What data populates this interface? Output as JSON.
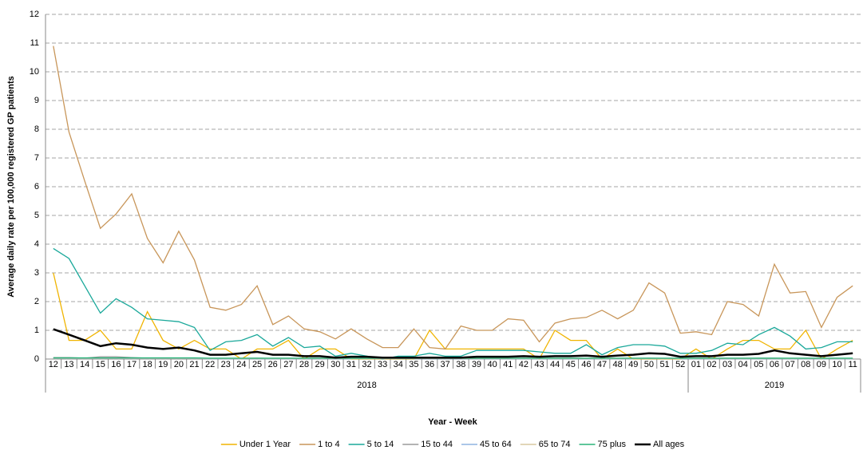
{
  "chart_data": {
    "type": "line",
    "y_label": "Average daily rate per 100,000 registered GP patients",
    "x_label": "Year - Week",
    "groups": [
      {
        "label": "2018",
        "categories": [
          "12",
          "13",
          "14",
          "15",
          "16",
          "17",
          "18",
          "19",
          "20",
          "21",
          "22",
          "23",
          "24",
          "25",
          "26",
          "27",
          "28",
          "29",
          "30",
          "31",
          "32",
          "33",
          "34",
          "35",
          "36",
          "37",
          "38",
          "39",
          "40",
          "41",
          "42",
          "43",
          "44",
          "45",
          "46",
          "47",
          "48",
          "49",
          "50",
          "51",
          "52"
        ]
      },
      {
        "label": "2019",
        "categories": [
          "01",
          "02",
          "03",
          "04",
          "05",
          "06",
          "07",
          "08",
          "09",
          "10",
          "11"
        ]
      }
    ],
    "ylim": [
      0,
      12
    ],
    "yticks": [
      0,
      1,
      2,
      3,
      4,
      5,
      6,
      7,
      8,
      9,
      10,
      11,
      12
    ],
    "grid": true,
    "legend": "bottom",
    "series": [
      {
        "name": "Under 1 Year",
        "color": "#f0b400",
        "values": [
          3.0,
          0.65,
          0.65,
          1.0,
          0.35,
          0.35,
          1.65,
          0.65,
          0.35,
          0.65,
          0.35,
          0.35,
          0.0,
          0.35,
          0.35,
          0.65,
          0.0,
          0.35,
          0.35,
          0.0,
          0.0,
          0.0,
          0.0,
          0.0,
          1.0,
          0.35,
          0.35,
          0.35,
          0.35,
          0.35,
          0.35,
          0.0,
          1.0,
          0.65,
          0.65,
          0.0,
          0.35,
          0.0,
          0.0,
          0.0,
          0.0,
          0.35,
          0.0,
          0.35,
          0.65,
          0.65,
          0.35,
          0.35,
          1.0,
          0.0,
          0.35,
          0.65
        ]
      },
      {
        "name": "1 to 4",
        "color": "#c8965a",
        "values": [
          10.9,
          7.9,
          6.2,
          4.55,
          5.05,
          5.75,
          4.2,
          3.35,
          4.45,
          3.45,
          1.8,
          1.7,
          1.9,
          2.55,
          1.2,
          1.5,
          1.05,
          0.95,
          0.7,
          1.05,
          0.7,
          0.4,
          0.4,
          1.05,
          0.4,
          0.35,
          1.15,
          1.0,
          1.0,
          1.4,
          1.35,
          0.6,
          1.25,
          1.4,
          1.45,
          1.7,
          1.4,
          1.7,
          2.65,
          2.3,
          0.9,
          0.95,
          0.85,
          2.0,
          1.9,
          1.5,
          3.3,
          2.3,
          2.35,
          1.1,
          2.15,
          2.55
        ]
      },
      {
        "name": "5 to 14",
        "color": "#1aa89a",
        "values": [
          3.85,
          3.5,
          2.55,
          1.6,
          2.1,
          1.8,
          1.4,
          1.35,
          1.3,
          1.1,
          0.3,
          0.6,
          0.65,
          0.85,
          0.45,
          0.75,
          0.4,
          0.45,
          0.1,
          0.2,
          0.1,
          0.0,
          0.1,
          0.1,
          0.2,
          0.1,
          0.1,
          0.3,
          0.3,
          0.3,
          0.3,
          0.25,
          0.2,
          0.2,
          0.5,
          0.15,
          0.4,
          0.5,
          0.5,
          0.45,
          0.2,
          0.2,
          0.3,
          0.55,
          0.5,
          0.85,
          1.1,
          0.8,
          0.35,
          0.4,
          0.6,
          0.6
        ]
      },
      {
        "name": "15 to 44",
        "color": "#9a9a9a",
        "values": [
          0.05,
          0.05,
          0.03,
          0.08,
          0.08,
          0.05,
          0.03,
          0.03,
          0.03,
          0.03,
          0.02,
          0.02,
          0.02,
          0.03,
          0.02,
          0.02,
          0.02,
          0.02,
          0.02,
          0.02,
          0.02,
          0.02,
          0.02,
          0.02,
          0.02,
          0.02,
          0.02,
          0.02,
          0.02,
          0.02,
          0.02,
          0.02,
          0.02,
          0.02,
          0.02,
          0.02,
          0.02,
          0.02,
          0.03,
          0.02,
          0.02,
          0.02,
          0.02,
          0.02,
          0.02,
          0.03,
          0.03,
          0.02,
          0.02,
          0.02,
          0.02,
          0.02
        ]
      },
      {
        "name": "45 to 64",
        "color": "#8fb4e0",
        "values": [
          0.02,
          0.02,
          0.02,
          0.02,
          0.02,
          0.02,
          0.02,
          0.02,
          0.02,
          0.02,
          0.01,
          0.01,
          0.01,
          0.01,
          0.01,
          0.01,
          0.01,
          0.01,
          0.01,
          0.01,
          0.01,
          0.01,
          0.01,
          0.01,
          0.01,
          0.01,
          0.01,
          0.01,
          0.01,
          0.01,
          0.01,
          0.01,
          0.01,
          0.01,
          0.01,
          0.01,
          0.01,
          0.01,
          0.01,
          0.01,
          0.01,
          0.01,
          0.01,
          0.01,
          0.01,
          0.01,
          0.01,
          0.01,
          0.01,
          0.01,
          0.01,
          0.01
        ]
      },
      {
        "name": "65 to 74",
        "color": "#d8c8a0",
        "values": [
          0.03,
          0.03,
          0.03,
          0.03,
          0.03,
          0.03,
          0.03,
          0.03,
          0.03,
          0.03,
          0.02,
          0.02,
          0.02,
          0.02,
          0.02,
          0.02,
          0.02,
          0.02,
          0.02,
          0.02,
          0.02,
          0.02,
          0.02,
          0.02,
          0.02,
          0.02,
          0.02,
          0.02,
          0.02,
          0.02,
          0.02,
          0.02,
          0.02,
          0.02,
          0.02,
          0.02,
          0.02,
          0.02,
          0.02,
          0.02,
          0.02,
          0.02,
          0.02,
          0.02,
          0.02,
          0.02,
          0.02,
          0.02,
          0.02,
          0.02,
          0.02,
          0.02
        ]
      },
      {
        "name": "75 plus",
        "color": "#2ab37a",
        "values": [
          0.04,
          0.04,
          0.04,
          0.04,
          0.04,
          0.04,
          0.04,
          0.04,
          0.04,
          0.04,
          0.03,
          0.03,
          0.03,
          0.03,
          0.03,
          0.03,
          0.03,
          0.03,
          0.03,
          0.03,
          0.03,
          0.03,
          0.03,
          0.03,
          0.03,
          0.03,
          0.03,
          0.03,
          0.03,
          0.03,
          0.03,
          0.03,
          0.03,
          0.03,
          0.03,
          0.03,
          0.03,
          0.03,
          0.03,
          0.03,
          0.03,
          0.03,
          0.03,
          0.03,
          0.03,
          0.03,
          0.03,
          0.03,
          0.03,
          0.03,
          0.03,
          0.03
        ]
      },
      {
        "name": "All ages",
        "color": "#000000",
        "width": 2.5,
        "values": [
          1.04,
          0.85,
          0.65,
          0.45,
          0.55,
          0.5,
          0.4,
          0.35,
          0.4,
          0.3,
          0.15,
          0.15,
          0.2,
          0.25,
          0.15,
          0.15,
          0.1,
          0.1,
          0.05,
          0.08,
          0.08,
          0.05,
          0.05,
          0.05,
          0.05,
          0.05,
          0.05,
          0.08,
          0.08,
          0.08,
          0.1,
          0.08,
          0.1,
          0.1,
          0.12,
          0.08,
          0.12,
          0.15,
          0.2,
          0.18,
          0.08,
          0.1,
          0.1,
          0.15,
          0.15,
          0.18,
          0.3,
          0.2,
          0.15,
          0.1,
          0.15,
          0.2
        ]
      }
    ]
  }
}
